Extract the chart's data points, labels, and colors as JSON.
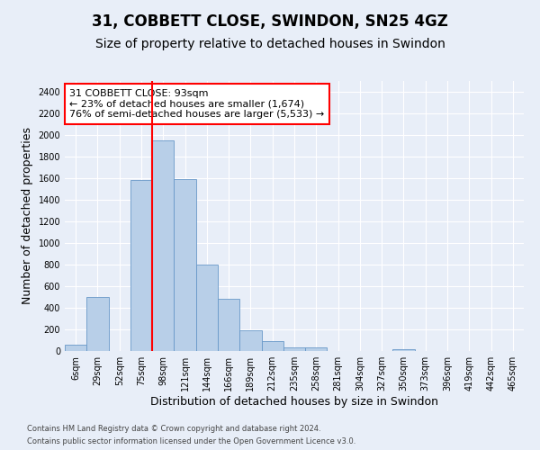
{
  "title": "31, COBBETT CLOSE, SWINDON, SN25 4GZ",
  "subtitle": "Size of property relative to detached houses in Swindon",
  "xlabel": "Distribution of detached houses by size in Swindon",
  "ylabel": "Number of detached properties",
  "categories": [
    "6sqm",
    "29sqm",
    "52sqm",
    "75sqm",
    "98sqm",
    "121sqm",
    "144sqm",
    "166sqm",
    "189sqm",
    "212sqm",
    "235sqm",
    "258sqm",
    "281sqm",
    "304sqm",
    "327sqm",
    "350sqm",
    "373sqm",
    "396sqm",
    "419sqm",
    "442sqm",
    "465sqm"
  ],
  "values": [
    60,
    500,
    0,
    1580,
    1950,
    1590,
    800,
    480,
    195,
    90,
    35,
    30,
    0,
    0,
    0,
    20,
    0,
    0,
    0,
    0,
    0
  ],
  "bar_color": "#b8cfe8",
  "bar_edge_color": "#6898c8",
  "ylim": [
    0,
    2500
  ],
  "yticks": [
    0,
    200,
    400,
    600,
    800,
    1000,
    1200,
    1400,
    1600,
    1800,
    2000,
    2200,
    2400
  ],
  "annotation_line1": "31 COBBETT CLOSE: 93sqm",
  "annotation_line2": "← 23% of detached houses are smaller (1,674)",
  "annotation_line3": "76% of semi-detached houses are larger (5,533) →",
  "vline_x": 4,
  "footer1": "Contains HM Land Registry data © Crown copyright and database right 2024.",
  "footer2": "Contains public sector information licensed under the Open Government Licence v3.0.",
  "bg_color": "#e8eef8",
  "grid_color": "#ffffff",
  "title_fontsize": 12,
  "subtitle_fontsize": 10,
  "ylabel_fontsize": 9,
  "xlabel_fontsize": 9,
  "tick_fontsize": 7,
  "footer_fontsize": 6
}
